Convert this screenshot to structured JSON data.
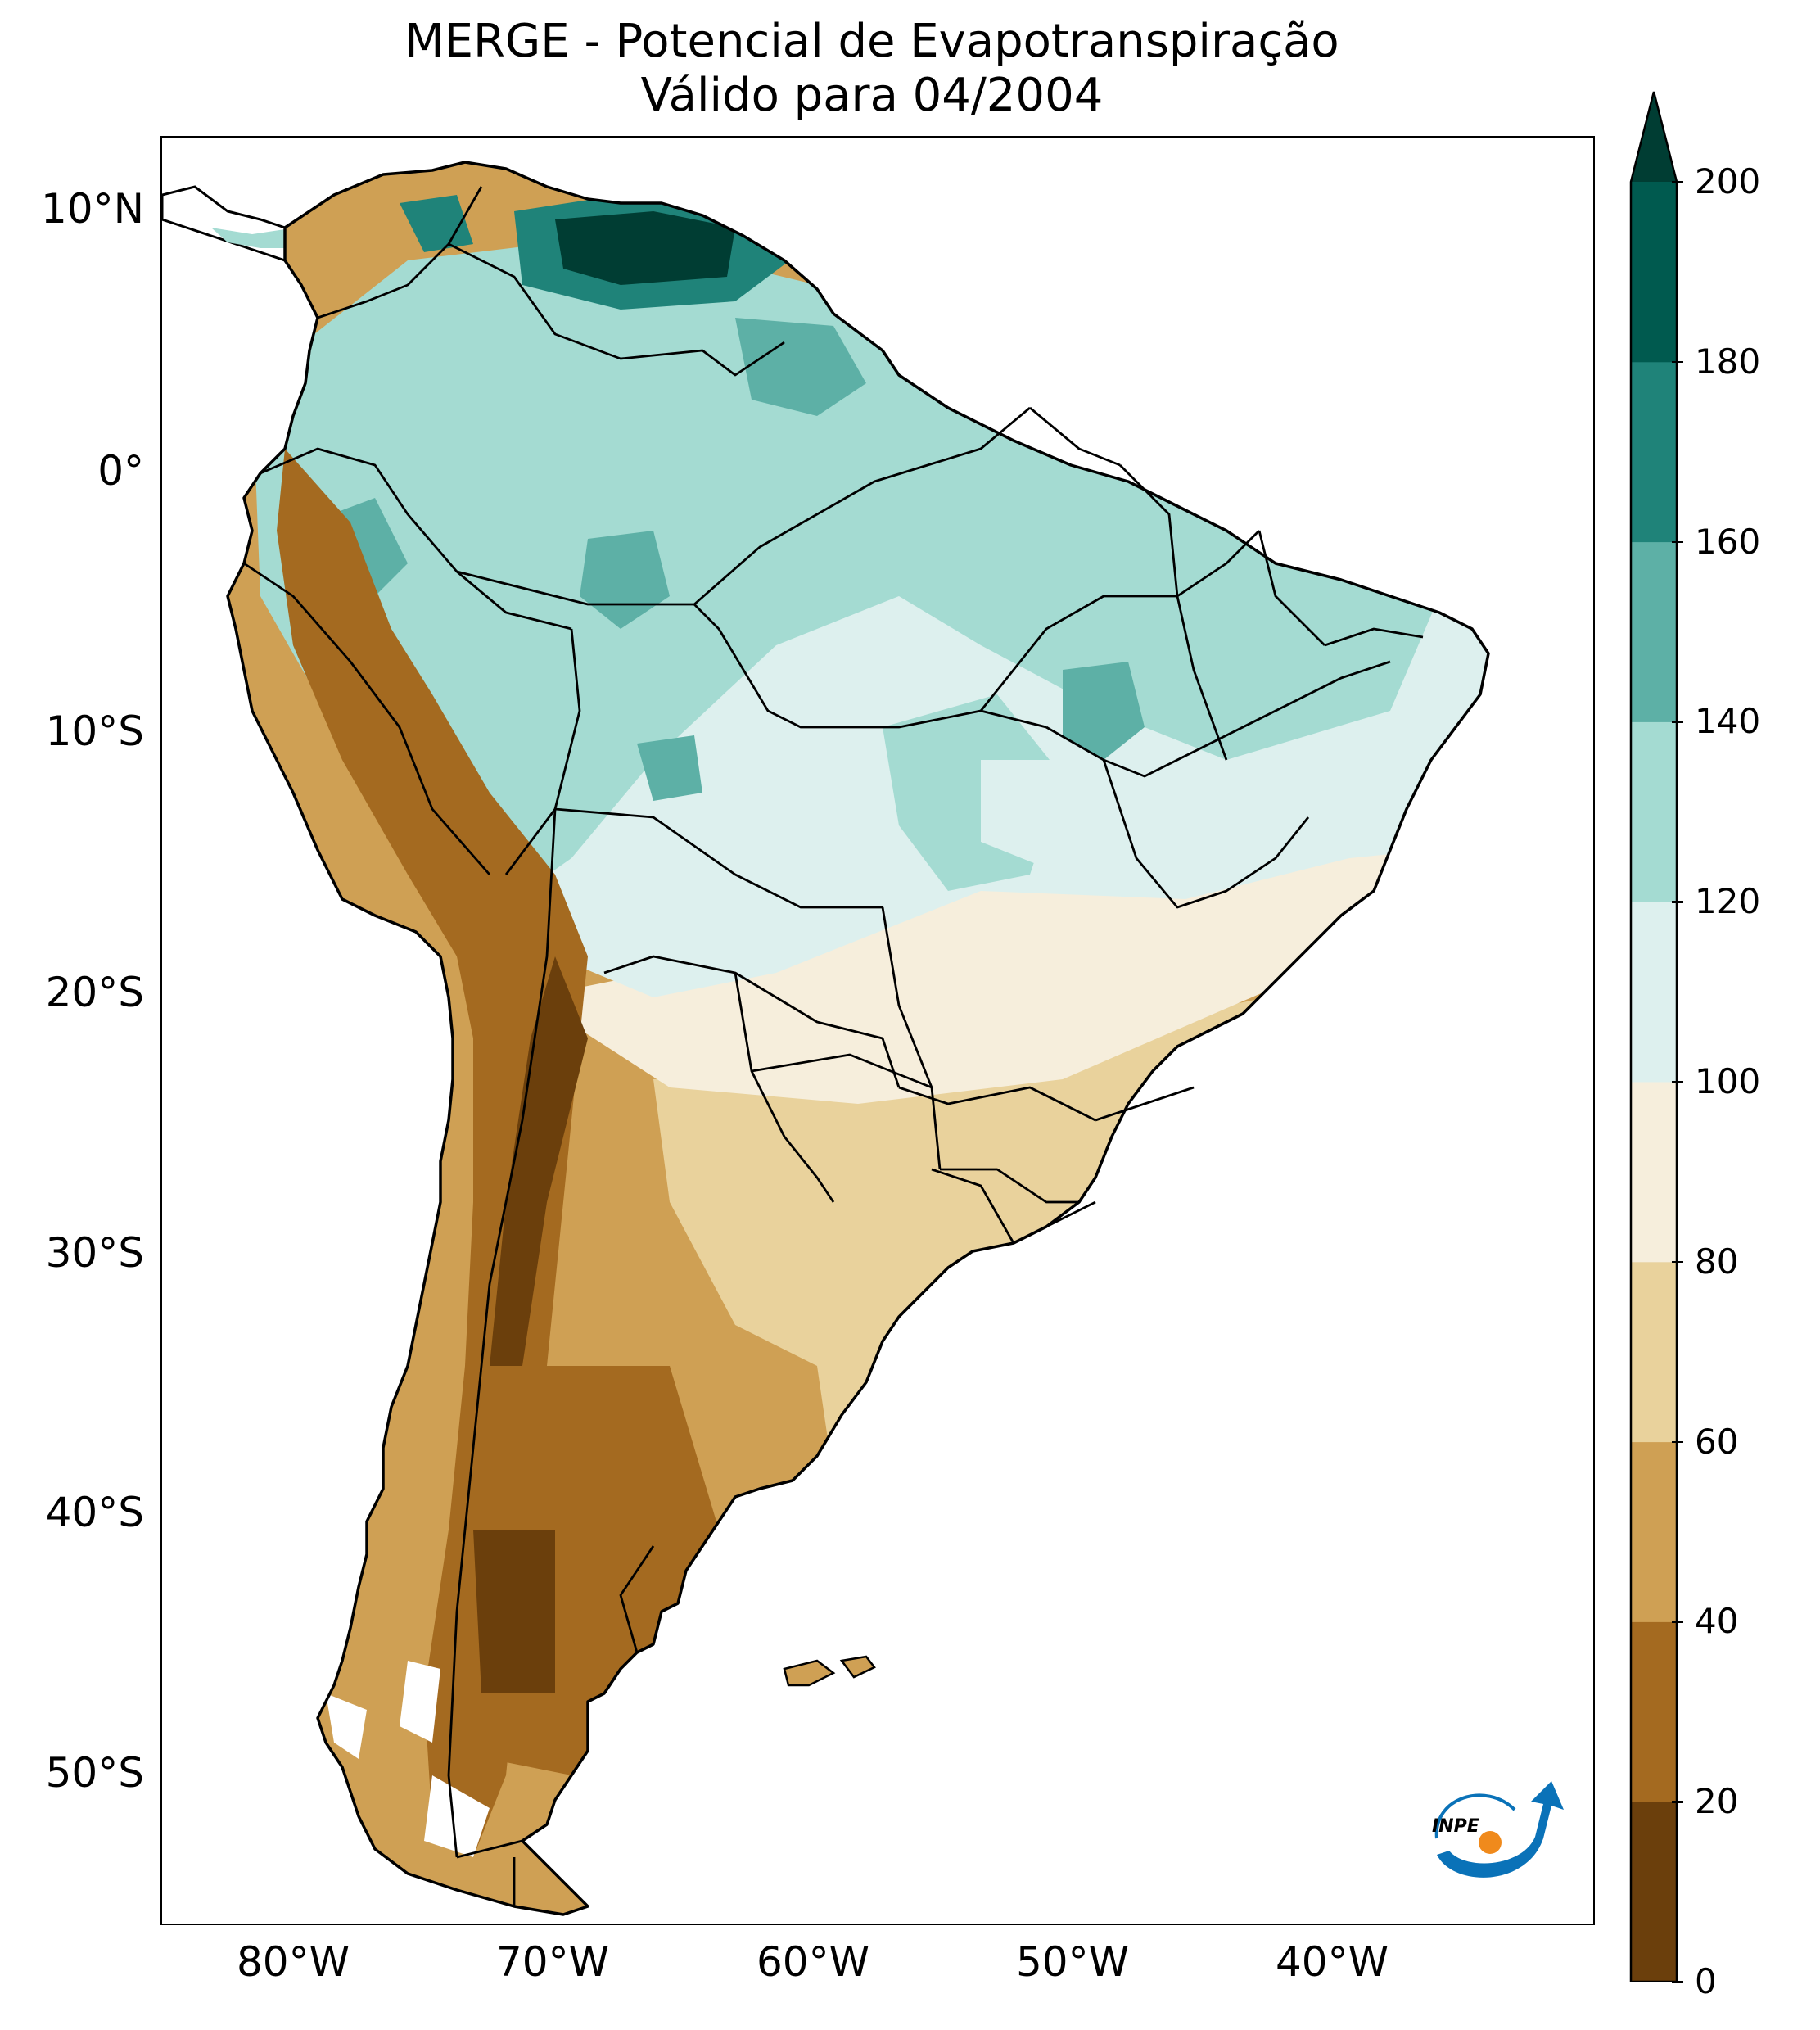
{
  "title": {
    "line1": "MERGE - Potencial de Evapotranspiração",
    "line2": "Válido para 04/2004"
  },
  "lat_labels": [
    "10°N",
    "0°",
    "10°S",
    "20°S",
    "30°S",
    "40°S",
    "50°S"
  ],
  "lon_labels": [
    "80°W",
    "70°W",
    "60°W",
    "50°W",
    "40°W"
  ],
  "colorbar": {
    "ticks": [
      "0",
      "20",
      "40",
      "60",
      "80",
      "100",
      "120",
      "140",
      "160",
      "180",
      "200"
    ],
    "colors": [
      "#6b3f0c",
      "#a46a20",
      "#cfa054",
      "#e9d29c",
      "#f6eedc",
      "#ddf0ee",
      "#a4dbd2",
      "#5db0a6",
      "#1f8379",
      "#005a4f",
      "#003d33"
    ]
  },
  "logo": {
    "text": "INPE",
    "blue": "#0a72b8",
    "orange": "#f08a1c"
  },
  "map_extent": {
    "lon": [
      -85,
      -30
    ],
    "lat": [
      -56,
      12.5
    ]
  }
}
